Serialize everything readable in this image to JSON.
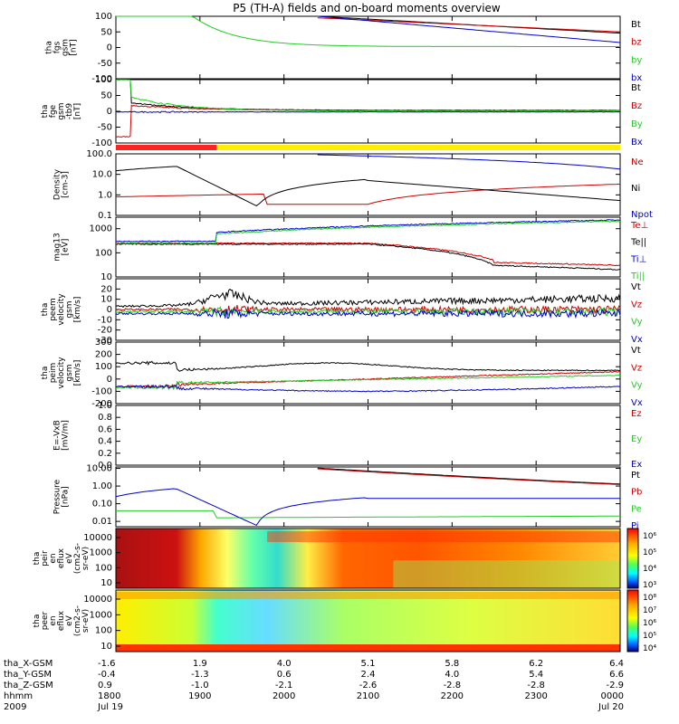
{
  "chart_data": {
    "type": "line",
    "title": "P5 (TH-A) fields and on-board moments overview",
    "panels": [
      {
        "id": "fgs",
        "ylabel": [
          "tha",
          "fgs",
          "gsm",
          "[nT]"
        ],
        "yticks": [
          "100",
          "50",
          "0",
          "-50",
          "-100"
        ],
        "yrange": [
          -100,
          100
        ],
        "scale": "linear",
        "legend": [
          {
            "name": "Bt",
            "color": "#000000"
          },
          {
            "name": "bz",
            "color": "#cc0000"
          },
          {
            "name": "by",
            "color": "#22cc22"
          },
          {
            "name": "bx",
            "color": "#0000cc"
          }
        ]
      },
      {
        "id": "fgs_b",
        "ylabel": [
          "tha",
          "fge",
          "gsm",
          "-tb9",
          "[nT]"
        ],
        "yticks": [
          "100",
          "50",
          "0",
          "-50",
          "-100"
        ],
        "yrange": [
          -100,
          100
        ],
        "scale": "linear",
        "legend": [
          {
            "name": "Bt",
            "color": "#000000"
          },
          {
            "name": "Bz",
            "color": "#cc0000"
          },
          {
            "name": "By",
            "color": "#22cc22"
          },
          {
            "name": "Bx",
            "color": "#0000cc"
          }
        ]
      },
      {
        "id": "density",
        "ylabel": [
          "Density",
          "[cm-3]"
        ],
        "yticks": [
          "100.0",
          "10.0",
          "1.0",
          "0.1"
        ],
        "yrange": [
          0.1,
          100
        ],
        "scale": "log",
        "legend": [
          {
            "name": "Ne",
            "color": "#cc0000"
          },
          {
            "name": "Ni",
            "color": "#000000"
          },
          {
            "name": "Npot",
            "color": "#0000cc"
          }
        ]
      },
      {
        "id": "temp",
        "ylabel": [
          "mag13",
          "[eV]"
        ],
        "yticks": [
          "1000",
          "100",
          "10"
        ],
        "yrange": [
          10,
          3000
        ],
        "scale": "log",
        "legend": [
          {
            "name": "Te⊥",
            "color": "#cc0000"
          },
          {
            "name": "Te||",
            "color": "#000000"
          },
          {
            "name": "Ti⊥",
            "color": "#0000cc"
          },
          {
            "name": "Ti||",
            "color": "#22cc22"
          }
        ]
      },
      {
        "id": "velocity_e",
        "ylabel": [
          "tha",
          "peem",
          "velocity",
          "gsm",
          "[km/s]"
        ],
        "yticks": [
          "20",
          "10",
          "0",
          "-10",
          "-20",
          "-30"
        ],
        "yrange": [
          -30,
          30
        ],
        "scale": "linear",
        "legend": [
          {
            "name": "Vt",
            "color": "#000000"
          },
          {
            "name": "Vz",
            "color": "#cc0000"
          },
          {
            "name": "Vy",
            "color": "#22cc22"
          },
          {
            "name": "Vx",
            "color": "#0000cc"
          }
        ]
      },
      {
        "id": "velocity_i",
        "ylabel": [
          "tha",
          "peim",
          "velocity",
          "gsm",
          "[km/s]"
        ],
        "yticks": [
          "300",
          "200",
          "100",
          "0",
          "-100",
          "-200"
        ],
        "yrange": [
          -200,
          300
        ],
        "scale": "linear",
        "legend": [
          {
            "name": "Vt",
            "color": "#000000"
          },
          {
            "name": "Vz",
            "color": "#cc0000"
          },
          {
            "name": "Vy",
            "color": "#22cc22"
          },
          {
            "name": "Vx",
            "color": "#0000cc"
          }
        ]
      },
      {
        "id": "efield",
        "ylabel": [
          "E=-VxB",
          "[mV/m]"
        ],
        "yticks": [
          "1.0",
          "0.8",
          "0.6",
          "0.4",
          "0.2",
          "0.0"
        ],
        "yrange": [
          0,
          1
        ],
        "scale": "linear",
        "legend": [
          {
            "name": "Ez",
            "color": "#cc0000"
          },
          {
            "name": "Ey",
            "color": "#22cc22"
          },
          {
            "name": "Ex",
            "color": "#0000cc"
          }
        ]
      },
      {
        "id": "pressure",
        "ylabel": [
          "Pressure",
          "[nPa]"
        ],
        "yticks": [
          "10.00",
          "1.00",
          "0.10",
          "0.01"
        ],
        "yrange": [
          0.005,
          12
        ],
        "scale": "log",
        "legend": [
          {
            "name": "Pt",
            "color": "#000000"
          },
          {
            "name": "Pb",
            "color": "#cc0000"
          },
          {
            "name": "Pe",
            "color": "#22cc22"
          },
          {
            "name": "Pi",
            "color": "#0000cc"
          }
        ]
      },
      {
        "id": "ion_spec",
        "type": "heatmap",
        "ylabel": [
          "tha",
          "peir",
          "en",
          "eflux",
          "eV",
          "(cm2-s-",
          "sr-eV)"
        ],
        "yticks": [
          "10000",
          "1000",
          "100",
          "10"
        ],
        "colorbar": [
          "10⁶",
          "10⁵",
          "10⁴",
          "10³"
        ]
      },
      {
        "id": "elec_spec",
        "type": "heatmap",
        "ylabel": [
          "tha",
          "peer",
          "en",
          "eflux",
          "eV",
          "(cm2-s-",
          "sr-eV)"
        ],
        "yticks": [
          "10000",
          "1000",
          "100",
          "10"
        ],
        "colorbar": [
          "10⁸",
          "10⁷",
          "10⁶",
          "10⁵",
          "10⁴"
        ]
      }
    ],
    "mode_bar": {
      "red_until_fraction": 0.2
    },
    "x_axis": {
      "rows": [
        {
          "label": "tha_X-GSM",
          "values": [
            "-1.6",
            "1.9",
            "4.0",
            "5.1",
            "5.8",
            "6.2",
            "6.4"
          ]
        },
        {
          "label": "tha_Y-GSM",
          "values": [
            "-0.4",
            "-1.3",
            "0.6",
            "2.4",
            "4.0",
            "5.4",
            "6.6"
          ]
        },
        {
          "label": "tha_Z-GSM",
          "values": [
            "0.9",
            "-1.0",
            "-2.1",
            "-2.6",
            "-2.8",
            "-2.8",
            "-2.9"
          ]
        },
        {
          "label": "hhmm",
          "values": [
            "1800",
            "1900",
            "2000",
            "2100",
            "2200",
            "2300",
            "0000"
          ]
        },
        {
          "label": "2009",
          "values": [
            "Jul 19",
            "",
            "",
            "",
            "",
            "",
            "Jul 20"
          ]
        }
      ]
    }
  }
}
